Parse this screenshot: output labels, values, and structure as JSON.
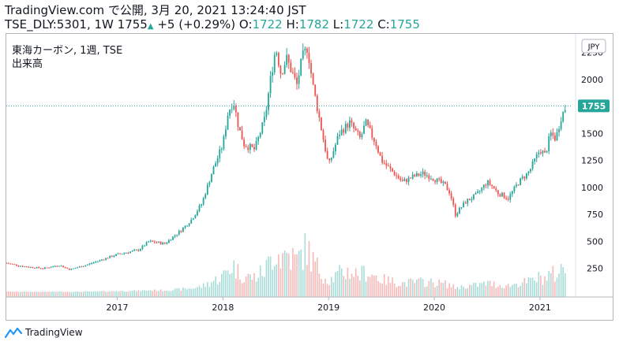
{
  "header": {
    "site": "TradingView.com",
    "published_text": "で公開, 3月 20, 2021 13:24:40 JST",
    "ticker": "TSE_DLY:5301, 1W 1755",
    "change": "+5 (+0.29%)",
    "o_label": "O:",
    "o_value": "1722",
    "h_label": "H:",
    "h_value": "1782",
    "l_label": "L:",
    "l_value": "1722",
    "c_label": "C:",
    "c_value": "1755"
  },
  "legend": {
    "title": "東海カーボン, 1週, TSE",
    "volume_label": "出来高"
  },
  "footer": {
    "brand": "TradingView"
  },
  "colors": {
    "up": "#26a69a",
    "down": "#ef5350",
    "vol_up": "#a7dcd7",
    "vol_down": "#f7b9b8",
    "last": "#26a69a"
  },
  "chart_data": {
    "type": "candlestick",
    "currency": "JPY",
    "last_price": 1755,
    "last_price_label": "1755",
    "y_ticks": [
      250,
      500,
      750,
      1000,
      1250,
      1500,
      1750,
      2000,
      2250
    ],
    "y_labels": [
      "250",
      "500",
      "750",
      "1000",
      "1250",
      "1500",
      "",
      "2000",
      "2250"
    ],
    "ylim": [
      0,
      2400
    ],
    "x_tick_labels": [
      "2017",
      "2018",
      "2019",
      "2020",
      "2021"
    ],
    "x_tick_positions": [
      2017.0,
      2018.0,
      2019.0,
      2020.0,
      2021.0
    ],
    "x_range": [
      2015.95,
      2021.3
    ],
    "price_path": [
      [
        2015.95,
        300
      ],
      [
        2016.1,
        270
      ],
      [
        2016.3,
        250
      ],
      [
        2016.45,
        280
      ],
      [
        2016.55,
        240
      ],
      [
        2016.7,
        280
      ],
      [
        2016.85,
        330
      ],
      [
        2017.0,
        380
      ],
      [
        2017.2,
        420
      ],
      [
        2017.3,
        500
      ],
      [
        2017.45,
        480
      ],
      [
        2017.6,
        600
      ],
      [
        2017.7,
        700
      ],
      [
        2017.8,
        850
      ],
      [
        2017.9,
        1150
      ],
      [
        2018.0,
        1400
      ],
      [
        2018.05,
        1700
      ],
      [
        2018.1,
        1800
      ],
      [
        2018.15,
        1550
      ],
      [
        2018.2,
        1400
      ],
      [
        2018.3,
        1350
      ],
      [
        2018.4,
        1650
      ],
      [
        2018.45,
        2000
      ],
      [
        2018.5,
        2300
      ],
      [
        2018.55,
        2050
      ],
      [
        2018.6,
        2200
      ],
      [
        2018.7,
        1950
      ],
      [
        2018.75,
        2200
      ],
      [
        2018.8,
        2300
      ],
      [
        2018.85,
        1950
      ],
      [
        2018.9,
        1700
      ],
      [
        2018.95,
        1450
      ],
      [
        2019.0,
        1200
      ],
      [
        2019.05,
        1350
      ],
      [
        2019.1,
        1500
      ],
      [
        2019.2,
        1600
      ],
      [
        2019.3,
        1450
      ],
      [
        2019.35,
        1600
      ],
      [
        2019.45,
        1400
      ],
      [
        2019.5,
        1250
      ],
      [
        2019.6,
        1150
      ],
      [
        2019.7,
        1050
      ],
      [
        2019.8,
        1100
      ],
      [
        2019.9,
        1130
      ],
      [
        2020.0,
        1080
      ],
      [
        2020.1,
        1020
      ],
      [
        2020.15,
        950
      ],
      [
        2020.2,
        750
      ],
      [
        2020.3,
        870
      ],
      [
        2020.4,
        930
      ],
      [
        2020.5,
        1050
      ],
      [
        2020.55,
        1010
      ],
      [
        2020.6,
        950
      ],
      [
        2020.7,
        900
      ],
      [
        2020.8,
        1050
      ],
      [
        2020.9,
        1150
      ],
      [
        2020.95,
        1250
      ],
      [
        2021.0,
        1350
      ],
      [
        2021.05,
        1300
      ],
      [
        2021.1,
        1500
      ],
      [
        2021.15,
        1450
      ],
      [
        2021.2,
        1650
      ],
      [
        2021.25,
        1755
      ]
    ]
  }
}
